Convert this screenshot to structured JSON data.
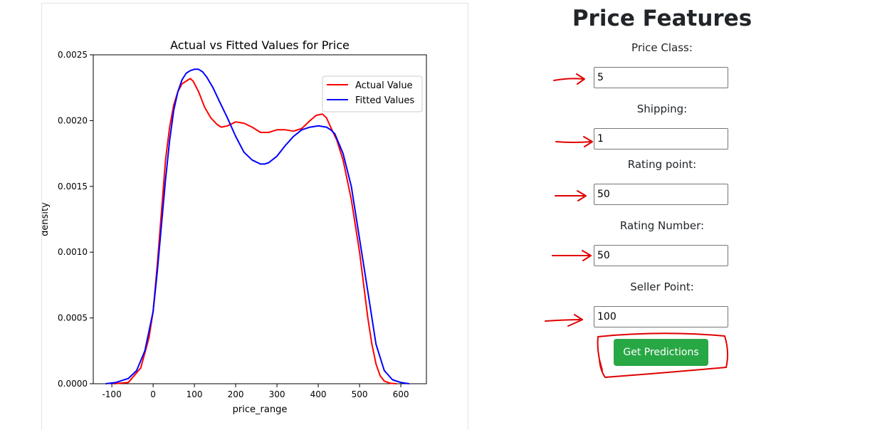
{
  "form": {
    "title": "Price Features",
    "fields": [
      {
        "label": "Price Class:",
        "value": "5"
      },
      {
        "label": "Shipping:",
        "value": "1"
      },
      {
        "label": "Rating point:",
        "value": "50"
      },
      {
        "label": "Rating Number:",
        "value": "50"
      },
      {
        "label": "Seller Point:",
        "value": "100"
      }
    ],
    "submit_label": "Get Predictions",
    "submit_color": "#28a745"
  },
  "annotations": {
    "color": "#e00000",
    "arrows_pointing_to": [
      "Price Class",
      "Shipping",
      "Rating point",
      "Rating Number",
      "Seller Point"
    ],
    "circled": "Get Predictions"
  },
  "chart_data": {
    "type": "line",
    "title": "Actual vs Fitted Values for Price",
    "xlabel": "price_range",
    "ylabel": "density",
    "xlim": [
      -145,
      662
    ],
    "ylim": [
      0,
      0.0025
    ],
    "xticks": [
      -100,
      0,
      100,
      200,
      300,
      400,
      500,
      600
    ],
    "yticks": [
      0.0,
      0.0005,
      0.001,
      0.0015,
      0.002,
      0.0025
    ],
    "ytick_labels": [
      "0.0000",
      "0.0005",
      "0.0010",
      "0.0015",
      "0.0020",
      "0.0025"
    ],
    "legend_position": "upper-right",
    "grid": false,
    "series": [
      {
        "name": "Actual Value",
        "color": "#ff0000",
        "x": [
          -95,
          -60,
          -30,
          -10,
          0,
          10,
          20,
          30,
          40,
          50,
          60,
          70,
          80,
          90,
          97,
          110,
          125,
          140,
          155,
          165,
          180,
          200,
          220,
          240,
          260,
          280,
          300,
          320,
          340,
          360,
          380,
          395,
          410,
          420,
          430,
          445,
          460,
          480,
          500,
          510,
          520,
          530,
          540,
          550,
          560,
          575,
          590
        ],
        "values": [
          0.0,
          1e-05,
          0.00012,
          0.00035,
          0.00055,
          0.0009,
          0.0013,
          0.0017,
          0.00195,
          0.00212,
          0.00222,
          0.00228,
          0.0023,
          0.00232,
          0.0023,
          0.00222,
          0.0021,
          0.00202,
          0.00197,
          0.00195,
          0.00196,
          0.00199,
          0.00198,
          0.00195,
          0.00191,
          0.00191,
          0.00193,
          0.00193,
          0.00192,
          0.00194,
          0.002,
          0.00204,
          0.00205,
          0.00202,
          0.00195,
          0.00185,
          0.0017,
          0.0014,
          0.001,
          0.00075,
          0.0005,
          0.0003,
          0.00015,
          6e-05,
          2e-05,
          3e-06,
          0.0
        ]
      },
      {
        "name": "Fitted Values",
        "color": "#0000ff",
        "x": [
          -115,
          -90,
          -60,
          -40,
          -20,
          0,
          10,
          20,
          30,
          40,
          50,
          60,
          70,
          80,
          90,
          100,
          110,
          120,
          130,
          145,
          160,
          180,
          200,
          220,
          240,
          260,
          270,
          280,
          300,
          320,
          340,
          360,
          380,
          400,
          420,
          430,
          440,
          460,
          480,
          500,
          520,
          540,
          560,
          580,
          600,
          620
        ],
        "values": [
          0.0,
          1e-05,
          4e-05,
          0.0001,
          0.00025,
          0.00055,
          0.00085,
          0.0012,
          0.00155,
          0.00185,
          0.00208,
          0.00222,
          0.00231,
          0.00236,
          0.00238,
          0.00239,
          0.00239,
          0.00237,
          0.00233,
          0.00225,
          0.00215,
          0.00202,
          0.00188,
          0.00176,
          0.0017,
          0.00167,
          0.00167,
          0.00168,
          0.00173,
          0.00181,
          0.00188,
          0.00193,
          0.00195,
          0.00196,
          0.00195,
          0.00193,
          0.0019,
          0.00175,
          0.0015,
          0.0011,
          0.0007,
          0.0003,
          0.0001,
          3e-05,
          1e-05,
          0.0
        ]
      }
    ]
  }
}
